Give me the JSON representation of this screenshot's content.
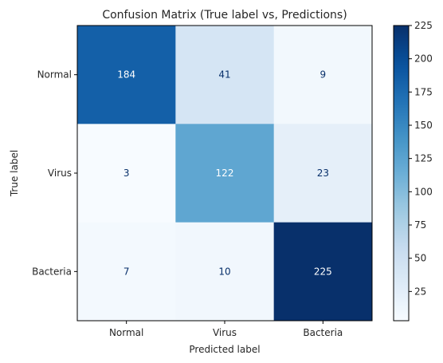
{
  "chart_data": {
    "type": "heatmap",
    "title": "Confusion Matrix (True label vs, Predictions)",
    "xlabel": "Predicted label",
    "ylabel": "True label",
    "x_categories": [
      "Normal",
      "Virus",
      "Bacteria"
    ],
    "y_categories": [
      "Normal",
      "Virus",
      "Bacteria"
    ],
    "values": [
      [
        184,
        41,
        9
      ],
      [
        3,
        122,
        23
      ],
      [
        7,
        10,
        225
      ]
    ],
    "colormap": "Blues",
    "colormap_stops": [
      "#f7fbff",
      "#deebf7",
      "#c6dbef",
      "#9ecae1",
      "#6baed6",
      "#4292c6",
      "#2171b5",
      "#08519c",
      "#08306b"
    ],
    "text_color_light": "#ffffff",
    "text_color_dark": "#08306b",
    "colorbar": {
      "range": [
        3,
        225
      ],
      "ticks": [
        25,
        50,
        75,
        100,
        125,
        150,
        175,
        200,
        225
      ]
    },
    "grid": false
  }
}
